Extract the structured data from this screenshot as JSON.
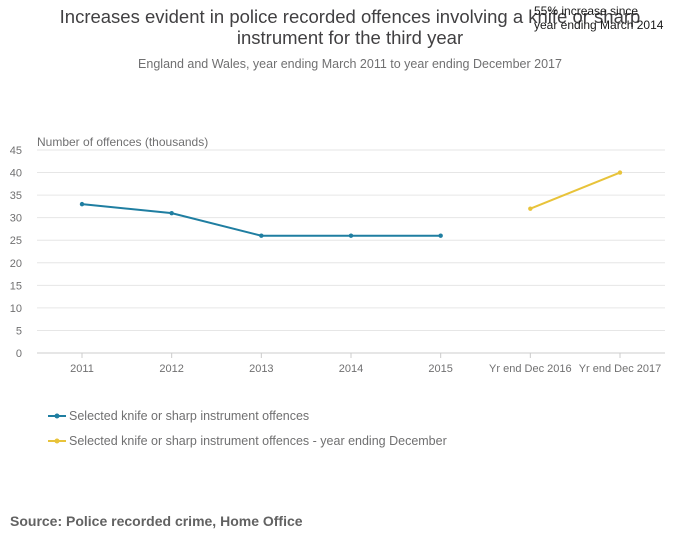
{
  "title_lines": [
    "Increases evident in police recorded offences involving a knife or sharp",
    "instrument for the third year"
  ],
  "subtitle": "England and Wales, year ending March 2011 to year ending December 2017",
  "annotation_lines": [
    "55% increase since",
    "year ending March 2014"
  ],
  "source": "Source: Police recorded crime, Home Office",
  "colors": {
    "series_1": "#206095",
    "series_2": "#e8c33a",
    "grid": "#e6e6e6",
    "axis_text": "#707071"
  },
  "chart_data": {
    "type": "line",
    "title": "Increases evident in police recorded offences involving a knife or sharp instrument for the third year",
    "subtitle": "England and Wales, year ending March 2011 to year ending December 2017",
    "ylabel": "Number of offences (thousands)",
    "xlabel": "",
    "categories": [
      "2011",
      "2012",
      "2013",
      "2014",
      "2015",
      "Yr end Dec 2016",
      "Yr end Dec 2017"
    ],
    "yticks": [
      0,
      5,
      10,
      15,
      20,
      25,
      30,
      35,
      40,
      45
    ],
    "ylim": [
      0,
      45
    ],
    "grid": true,
    "legend_position": "bottom-left",
    "series": [
      {
        "name": "Selected knife or sharp instrument offences",
        "color": "#1f7ea1",
        "values": [
          33,
          31,
          26,
          26,
          26,
          null,
          null
        ]
      },
      {
        "name": "Selected knife or sharp instrument offences - year ending December",
        "color": "#e8c33a",
        "values": [
          null,
          null,
          null,
          null,
          null,
          32,
          40
        ]
      }
    ]
  }
}
